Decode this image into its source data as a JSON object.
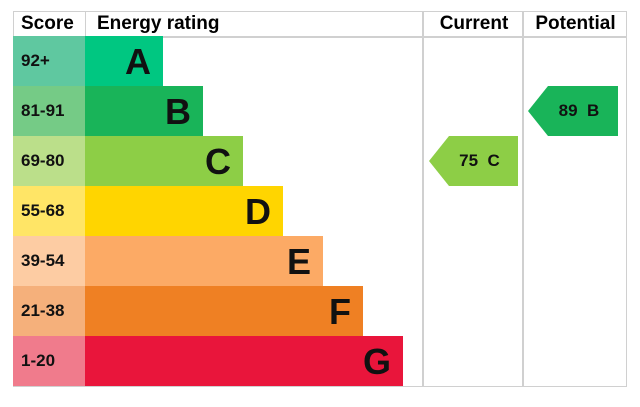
{
  "chart_data": {
    "type": "table",
    "headers": {
      "score": "Score",
      "rating": "Energy rating",
      "current": "Current",
      "potential": "Potential"
    },
    "bands": [
      {
        "score": "92+",
        "letter": "A",
        "color": "#00c781",
        "score_color": "#5fc8a0"
      },
      {
        "score": "81-91",
        "letter": "B",
        "color": "#19b459",
        "score_color": "#75cb86"
      },
      {
        "score": "69-80",
        "letter": "C",
        "color": "#8dce46",
        "score_color": "#bbdf8a"
      },
      {
        "score": "55-68",
        "letter": "D",
        "color": "#ffd500",
        "score_color": "#ffe566"
      },
      {
        "score": "39-54",
        "letter": "E",
        "color": "#fcaa65",
        "score_color": "#fdcca3"
      },
      {
        "score": "21-38",
        "letter": "F",
        "color": "#ef8023",
        "score_color": "#f5b07b"
      },
      {
        "score": "1-20",
        "letter": "G",
        "color": "#e9153b",
        "score_color": "#f07b8c"
      }
    ],
    "current": {
      "value": 75,
      "letter": "C",
      "label": "75  C",
      "color": "#8dce46"
    },
    "potential": {
      "value": 89,
      "letter": "B",
      "label": "89  B",
      "color": "#19b459"
    }
  }
}
